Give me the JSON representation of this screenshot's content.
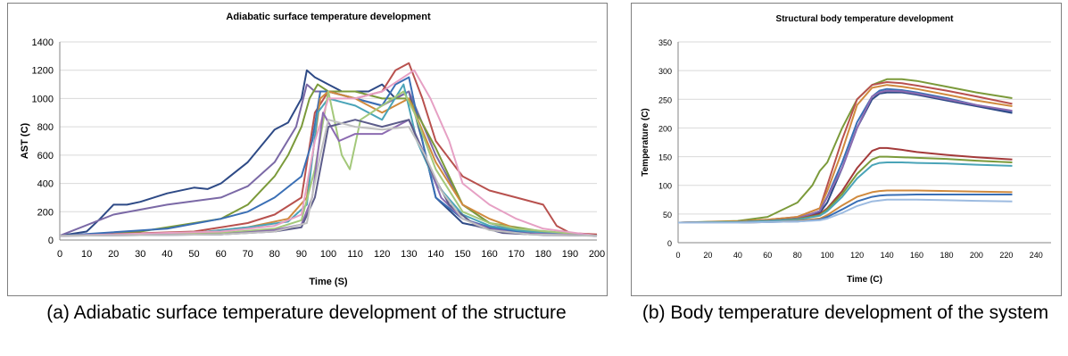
{
  "charts": [
    {
      "caption": "(a) Adiabatic surface temperature development of the structure",
      "chart_data": {
        "type": "line",
        "title": "Adiabatic surface temperature development",
        "xlabel": "Time (S)",
        "ylabel": "AST (C)",
        "xlim": [
          0,
          200
        ],
        "ylim": [
          0,
          1400
        ],
        "xticks": [
          0,
          10,
          20,
          30,
          40,
          50,
          60,
          70,
          80,
          90,
          100,
          110,
          120,
          130,
          140,
          150,
          160,
          170,
          180,
          190,
          200
        ],
        "yticks": [
          0,
          200,
          400,
          600,
          800,
          1000,
          1200,
          1400
        ],
        "grid": true,
        "legend": "none",
        "series": [
          {
            "color": "#2e4a86",
            "x": [
              0,
              10,
              15,
              20,
              25,
              30,
              40,
              50,
              55,
              60,
              70,
              80,
              85,
              90,
              92,
              95,
              100,
              105,
              110,
              115,
              120,
              125,
              130,
              135,
              140,
              150,
              160,
              170,
              180,
              190,
              200
            ],
            "y": [
              30,
              60,
              150,
              250,
              250,
              270,
              330,
              370,
              360,
              400,
              550,
              780,
              830,
              1000,
              1200,
              1150,
              1100,
              1050,
              1050,
              1050,
              1100,
              1000,
              1050,
              700,
              300,
              120,
              80,
              60,
              50,
              40,
              30
            ]
          },
          {
            "color": "#7b69a6",
            "x": [
              0,
              20,
              40,
              60,
              70,
              80,
              88,
              92,
              95,
              100,
              110,
              120,
              130,
              140,
              150,
              160,
              170,
              180,
              190,
              200
            ],
            "y": [
              30,
              180,
              250,
              300,
              380,
              550,
              800,
              1100,
              1050,
              1050,
              1000,
              950,
              1050,
              600,
              250,
              120,
              70,
              50,
              40,
              30
            ]
          },
          {
            "color": "#7b9a3a",
            "x": [
              0,
              30,
              60,
              70,
              80,
              85,
              90,
              93,
              96,
              100,
              110,
              120,
              130,
              140,
              150,
              160,
              180,
              200
            ],
            "y": [
              30,
              60,
              150,
              250,
              450,
              600,
              800,
              1000,
              1100,
              1050,
              1050,
              1000,
              1000,
              650,
              250,
              120,
              60,
              30
            ]
          },
          {
            "color": "#b8514e",
            "x": [
              0,
              50,
              70,
              80,
              90,
              95,
              100,
              110,
              120,
              125,
              130,
              135,
              140,
              150,
              160,
              170,
              180,
              185,
              190,
              200
            ],
            "y": [
              30,
              60,
              120,
              180,
              300,
              900,
              1050,
              1000,
              1050,
              1200,
              1250,
              1000,
              700,
              450,
              350,
              300,
              250,
              100,
              50,
              40
            ]
          },
          {
            "color": "#3a6fb5",
            "x": [
              0,
              40,
              60,
              70,
              80,
              90,
              94,
              97,
              100,
              110,
              120,
              125,
              130,
              135,
              140,
              150,
              160,
              170,
              180,
              190,
              200
            ],
            "y": [
              30,
              80,
              150,
              200,
              300,
              450,
              700,
              1050,
              1050,
              1000,
              950,
              1100,
              1150,
              700,
              300,
              150,
              90,
              60,
              50,
              40,
              30
            ]
          },
          {
            "color": "#d08a3e",
            "x": [
              0,
              50,
              70,
              85,
              92,
              97,
              100,
              110,
              120,
              130,
              140,
              150,
              160,
              170,
              180,
              190,
              200
            ],
            "y": [
              30,
              50,
              90,
              150,
              300,
              1000,
              1050,
              1000,
              900,
              1000,
              550,
              250,
              150,
              80,
              60,
              40,
              30
            ]
          },
          {
            "color": "#4aa4b8",
            "x": [
              0,
              50,
              70,
              85,
              92,
              96,
              100,
              110,
              120,
              128,
              133,
              140,
              150,
              160,
              170,
              180,
              200
            ],
            "y": [
              30,
              50,
              90,
              130,
              250,
              900,
              1000,
              950,
              850,
              1100,
              700,
              400,
              180,
              100,
              70,
              50,
              30
            ]
          },
          {
            "color": "#a3c87a",
            "x": [
              0,
              60,
              80,
              90,
              95,
              100,
              105,
              108,
              112,
              120,
              128,
              132,
              140,
              150,
              160,
              170,
              200
            ],
            "y": [
              30,
              50,
              80,
              140,
              500,
              1050,
              600,
              500,
              850,
              950,
              1050,
              900,
              500,
              200,
              120,
              80,
              30
            ]
          },
          {
            "color": "#e6a0c4",
            "x": [
              0,
              60,
              80,
              90,
              95,
              100,
              110,
              120,
              128,
              132,
              138,
              145,
              150,
              160,
              170,
              180,
              200
            ],
            "y": [
              30,
              60,
              100,
              180,
              700,
              1000,
              1000,
              1050,
              1150,
              1200,
              1000,
              700,
              400,
              250,
              150,
              80,
              30
            ]
          },
          {
            "color": "#8c6bb1",
            "x": [
              0,
              60,
              80,
              90,
              94,
              98,
              104,
              110,
              120,
              130,
              136,
              142,
              150,
              160,
              170,
              200
            ],
            "y": [
              30,
              40,
              70,
              110,
              300,
              900,
              700,
              750,
              750,
              850,
              600,
              300,
              150,
              80,
              50,
              30
            ]
          },
          {
            "color": "#5c5c8a",
            "x": [
              0,
              60,
              80,
              90,
              95,
              100,
              110,
              120,
              130,
              138,
              145,
              155,
              165,
              180,
              200
            ],
            "y": [
              30,
              40,
              60,
              90,
              300,
              800,
              850,
              800,
              850,
              500,
              250,
              100,
              50,
              35,
              30
            ]
          },
          {
            "color": "#c0c0c0",
            "x": [
              0,
              60,
              80,
              92,
              97,
              100,
              110,
              120,
              130,
              136,
              142,
              150,
              160,
              175,
              200
            ],
            "y": [
              30,
              40,
              60,
              120,
              600,
              850,
              800,
              780,
              800,
              600,
              350,
              150,
              70,
              40,
              30
            ]
          }
        ]
      }
    },
    {
      "caption": "(b) Body temperature development of the system",
      "chart_data": {
        "type": "line",
        "title": "Structural body temperature development",
        "xlabel": "Time (C)",
        "ylabel": "Temperature (C)",
        "xlim": [
          0,
          250
        ],
        "ylim": [
          0,
          350
        ],
        "xticks": [
          0,
          20,
          40,
          60,
          80,
          100,
          120,
          140,
          160,
          180,
          200,
          220,
          240
        ],
        "yticks": [
          0,
          50,
          100,
          150,
          200,
          250,
          300,
          350
        ],
        "grid": true,
        "legend": "none",
        "series": [
          {
            "color": "#7b9a3a",
            "x": [
              0,
              40,
              60,
              80,
              90,
              95,
              100,
              110,
              120,
              130,
              140,
              150,
              160,
              180,
              200,
              224
            ],
            "y": [
              35,
              38,
              45,
              70,
              100,
              125,
              140,
              200,
              250,
              275,
              285,
              285,
              282,
              272,
              262,
              252
            ]
          },
          {
            "color": "#b8514e",
            "x": [
              0,
              40,
              60,
              80,
              95,
              100,
              110,
              120,
              130,
              140,
              150,
              160,
              180,
              200,
              224
            ],
            "y": [
              35,
              37,
              40,
              45,
              60,
              100,
              180,
              250,
              275,
              280,
              278,
              274,
              265,
              255,
              242
            ]
          },
          {
            "color": "#d08a3e",
            "x": [
              0,
              40,
              60,
              80,
              95,
              100,
              110,
              120,
              130,
              140,
              150,
              160,
              180,
              200,
              224
            ],
            "y": [
              35,
              37,
              40,
              45,
              60,
              90,
              160,
              240,
              270,
              275,
              272,
              268,
              258,
              248,
              238
            ]
          },
          {
            "color": "#3a6fb5",
            "x": [
              0,
              40,
              60,
              80,
              95,
              100,
              110,
              120,
              130,
              135,
              140,
              150,
              160,
              180,
              200,
              224
            ],
            "y": [
              35,
              36,
              38,
              42,
              55,
              80,
              140,
              210,
              255,
              265,
              268,
              266,
              262,
              252,
              240,
              228
            ]
          },
          {
            "color": "#2e4a86",
            "x": [
              0,
              40,
              60,
              80,
              95,
              100,
              110,
              120,
              130,
              135,
              140,
              150,
              160,
              180,
              200,
              224
            ],
            "y": [
              35,
              36,
              38,
              42,
              52,
              70,
              130,
              200,
              250,
              260,
              262,
              262,
              258,
              248,
              238,
              226
            ]
          },
          {
            "color": "#8c6bb1",
            "x": [
              0,
              40,
              60,
              80,
              95,
              100,
              110,
              120,
              130,
              135,
              140,
              150,
              160,
              180,
              200,
              224
            ],
            "y": [
              35,
              36,
              38,
              42,
              55,
              80,
              130,
              200,
              255,
              262,
              265,
              264,
              260,
              250,
              240,
              230
            ]
          },
          {
            "color": "#a33a3a",
            "x": [
              0,
              40,
              60,
              80,
              95,
              100,
              110,
              120,
              130,
              135,
              140,
              150,
              160,
              180,
              200,
              224
            ],
            "y": [
              35,
              36,
              38,
              41,
              50,
              60,
              90,
              130,
              160,
              165,
              165,
              162,
              158,
              153,
              149,
              145
            ]
          },
          {
            "color": "#7b9a3a",
            "x": [
              0,
              40,
              60,
              80,
              95,
              100,
              110,
              120,
              130,
              135,
              140,
              150,
              160,
              180,
              200,
              224
            ],
            "y": [
              35,
              36,
              38,
              41,
              48,
              58,
              85,
              120,
              145,
              150,
              150,
              149,
              148,
              146,
              143,
              140
            ]
          },
          {
            "color": "#4aa4b8",
            "x": [
              0,
              40,
              60,
              80,
              95,
              100,
              110,
              120,
              130,
              135,
              140,
              150,
              160,
              180,
              200,
              224
            ],
            "y": [
              35,
              36,
              38,
              40,
              47,
              55,
              80,
              112,
              135,
              139,
              140,
              140,
              139,
              138,
              136,
              134
            ]
          },
          {
            "color": "#d08a3e",
            "x": [
              0,
              40,
              60,
              80,
              95,
              100,
              110,
              120,
              130,
              135,
              140,
              160,
              180,
              200,
              224
            ],
            "y": [
              35,
              35,
              36,
              38,
              42,
              48,
              65,
              80,
              88,
              90,
              91,
              91,
              90,
              89,
              88
            ]
          },
          {
            "color": "#3a6fb5",
            "x": [
              0,
              40,
              60,
              80,
              95,
              100,
              110,
              120,
              130,
              135,
              140,
              160,
              180,
              200,
              224
            ],
            "y": [
              35,
              35,
              36,
              37,
              40,
              45,
              58,
              72,
              80,
              82,
              83,
              84,
              84,
              84,
              84
            ]
          },
          {
            "color": "#9dbbe0",
            "x": [
              0,
              40,
              60,
              80,
              95,
              100,
              110,
              120,
              130,
              140,
              160,
              180,
              200,
              224
            ],
            "y": [
              35,
              35,
              36,
              37,
              39,
              42,
              52,
              64,
              72,
              75,
              75,
              74,
              73,
              72
            ]
          }
        ]
      }
    }
  ]
}
